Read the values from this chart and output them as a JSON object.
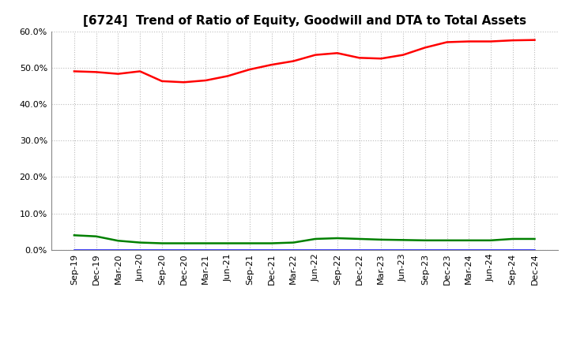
{
  "title": "[6724]  Trend of Ratio of Equity, Goodwill and DTA to Total Assets",
  "x_labels": [
    "Sep-19",
    "Dec-19",
    "Mar-20",
    "Jun-20",
    "Sep-20",
    "Dec-20",
    "Mar-21",
    "Jun-21",
    "Sep-21",
    "Dec-21",
    "Mar-22",
    "Jun-22",
    "Sep-22",
    "Dec-22",
    "Mar-23",
    "Jun-23",
    "Sep-23",
    "Dec-23",
    "Mar-24",
    "Jun-24",
    "Sep-24",
    "Dec-24"
  ],
  "equity": [
    0.49,
    0.488,
    0.483,
    0.49,
    0.463,
    0.46,
    0.465,
    0.477,
    0.495,
    0.508,
    0.518,
    0.535,
    0.54,
    0.527,
    0.525,
    0.535,
    0.555,
    0.57,
    0.572,
    0.572,
    0.575,
    0.576
  ],
  "goodwill": [
    0.0,
    0.0,
    0.0,
    0.0,
    0.0,
    0.0,
    0.0,
    0.0,
    0.0,
    0.0,
    0.0,
    0.0,
    0.0,
    0.0,
    0.0,
    0.0,
    0.0,
    0.0,
    0.0,
    0.0,
    0.0,
    0.0
  ],
  "dta": [
    0.04,
    0.037,
    0.025,
    0.02,
    0.018,
    0.018,
    0.018,
    0.018,
    0.018,
    0.018,
    0.02,
    0.03,
    0.032,
    0.03,
    0.028,
    0.027,
    0.026,
    0.026,
    0.026,
    0.026,
    0.03,
    0.03
  ],
  "equity_color": "#FF0000",
  "goodwill_color": "#0000FF",
  "dta_color": "#008000",
  "ylim": [
    0.0,
    0.6
  ],
  "yticks": [
    0.0,
    0.1,
    0.2,
    0.3,
    0.4,
    0.5,
    0.6
  ],
  "background_color": "#FFFFFF",
  "plot_bg_color": "#FFFFFF",
  "grid_color": "#AAAAAA",
  "title_fontsize": 11,
  "tick_fontsize": 8,
  "legend_fontsize": 9
}
